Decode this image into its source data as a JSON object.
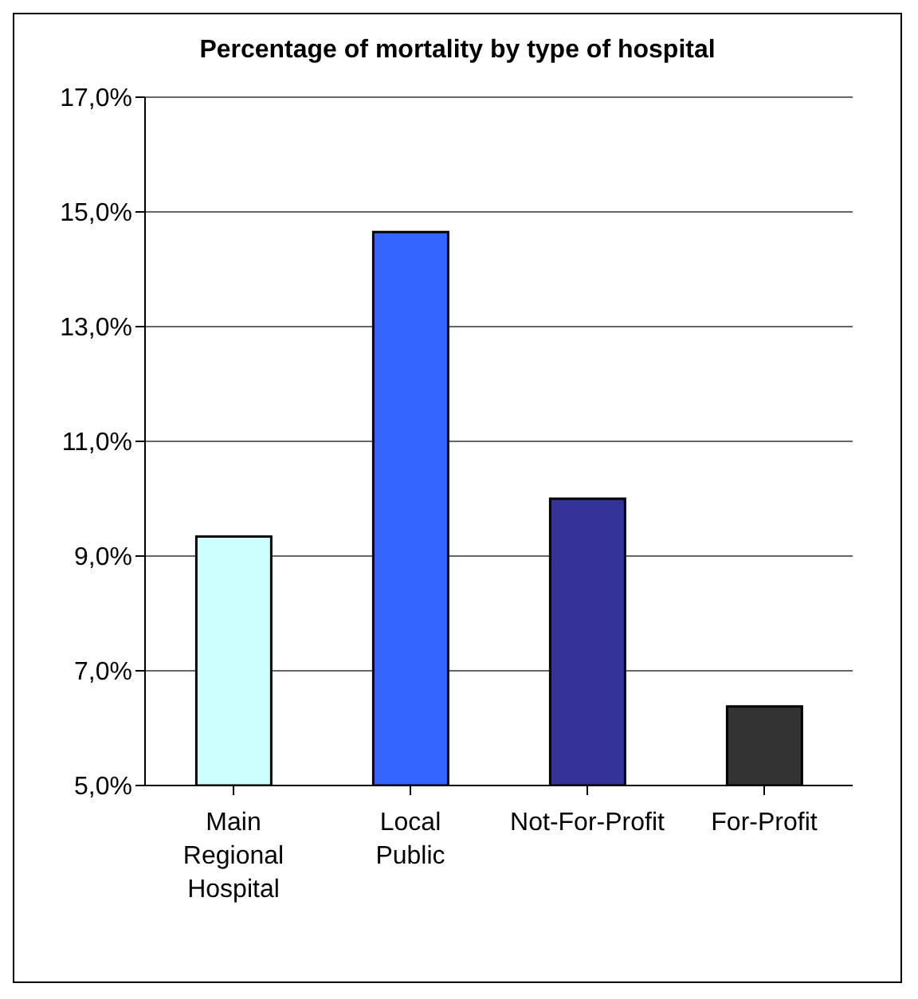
{
  "chart_data": {
    "type": "bar",
    "title": "Percentage of mortality by type of hospital",
    "categories": [
      "Main Regional Hospital",
      "Local Public",
      "Not-For-Profit",
      "For-Profit"
    ],
    "values": [
      9.34,
      14.65,
      10.0,
      6.38
    ],
    "colors": [
      "#ccffff",
      "#3366ff",
      "#333399",
      "#333333"
    ],
    "ylim": [
      5,
      17
    ],
    "yticks": [
      {
        "value": 5,
        "label": "5,0%"
      },
      {
        "value": 7,
        "label": "7,0%"
      },
      {
        "value": 9,
        "label": "9,0%"
      },
      {
        "value": 11,
        "label": "11,0%"
      },
      {
        "value": 13,
        "label": "13,0%"
      },
      {
        "value": 15,
        "label": "15,0%"
      },
      {
        "value": 17,
        "label": "17,0%"
      }
    ],
    "grid": "y",
    "legend": false
  }
}
